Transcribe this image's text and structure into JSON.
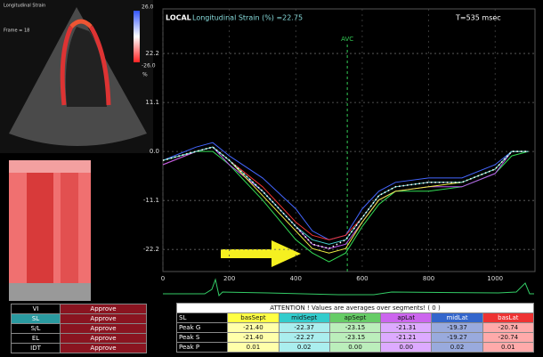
{
  "echo": {
    "header_lines": [
      "Longitudinal Strain",
      "Frame = 18"
    ],
    "colorbar_top": "26.0",
    "colorbar_bottom": "-26.0",
    "unit": "%"
  },
  "header": {
    "mode": "LOCAL",
    "title": "Longitudinal Strain (%) =22.75",
    "time": "T=535 msec"
  },
  "chart_data": {
    "type": "line",
    "x": [
      0,
      100,
      150,
      200,
      300,
      400,
      450,
      500,
      550,
      600,
      650,
      700,
      800,
      900,
      1000,
      1050,
      1100
    ],
    "series": [
      {
        "color": "#33dd55",
        "values": [
          -3,
          0,
          0,
          -3,
          -11,
          -20,
          -23,
          -25,
          -23,
          -17,
          -12,
          -9,
          -9,
          -8,
          -5,
          -1,
          0
        ]
      },
      {
        "color": "#4466ff",
        "values": [
          -2,
          1,
          2,
          -1,
          -6,
          -13,
          -18,
          -20,
          -19,
          -13,
          -9,
          -7,
          -6,
          -6,
          -3,
          0,
          0
        ]
      },
      {
        "color": "#ee3333",
        "values": [
          -3,
          0,
          1,
          -2,
          -8,
          -16,
          -19,
          -20,
          -19,
          -15,
          -10,
          -8,
          -7,
          -7,
          -4,
          0,
          0
        ]
      },
      {
        "color": "#bb55ee",
        "values": [
          -3,
          0,
          1,
          -3,
          -9,
          -17,
          -21,
          -22,
          -21,
          -16,
          -11,
          -9,
          -8,
          -8,
          -5,
          0,
          0
        ]
      },
      {
        "color": "#eeee44",
        "values": [
          -2,
          0,
          1,
          -2,
          -10,
          -18,
          -22,
          -23,
          -22,
          -16,
          -11,
          -9,
          -8,
          -7,
          -4,
          0,
          0
        ]
      },
      {
        "color": "#44cccc",
        "values": [
          -2,
          0,
          1,
          -2,
          -9,
          -17,
          -20,
          -21,
          -20,
          -15,
          -10,
          -8,
          -7,
          -7,
          -4,
          0,
          0
        ]
      },
      {
        "color": "#ffffff",
        "dotted": true,
        "values": [
          -2,
          0,
          1,
          -2,
          -9,
          -17,
          -21,
          -22,
          -20,
          -15,
          -10,
          -8,
          -7,
          -7,
          -4,
          0,
          0
        ]
      }
    ],
    "xlim": [
      0,
      1120
    ],
    "xticks": [
      0,
      200,
      400,
      600,
      800,
      1000
    ],
    "ylim": [
      -27.2,
      32.3
    ],
    "yticks": [
      22.2,
      11.1,
      {
        "value": 0,
        "label": "0.0"
      },
      -11.1,
      -22.2
    ],
    "grid": true,
    "avc": {
      "value": 555,
      "label": "AVC"
    }
  },
  "side_menu": {
    "rows": [
      [
        "VI",
        "Approve"
      ],
      [
        "SL",
        "Approve"
      ],
      [
        "S/L",
        "Approve"
      ],
      [
        "EL",
        "Approve"
      ],
      [
        "IDT",
        "Approve"
      ]
    ]
  },
  "segment_table": {
    "notice": "ATTENTION !  Values  are  averages  over  segments! ( 0 )",
    "header": [
      "SL",
      "basSept",
      "midSept",
      "apSept",
      "apLat",
      "midLat",
      "basLat"
    ],
    "rows": [
      [
        "Peak G",
        "-21.40",
        "-22.37",
        "-23.15",
        "-21.31",
        "-19.37",
        "-20.74"
      ],
      [
        "Peak S",
        "-21.40",
        "-22.27",
        "-23.15",
        "-21.21",
        "-19.27",
        "-20.74"
      ],
      [
        "Peak P",
        "0.01",
        "0.02",
        "0.00",
        "0.00",
        "0.02",
        "0.01"
      ]
    ]
  }
}
